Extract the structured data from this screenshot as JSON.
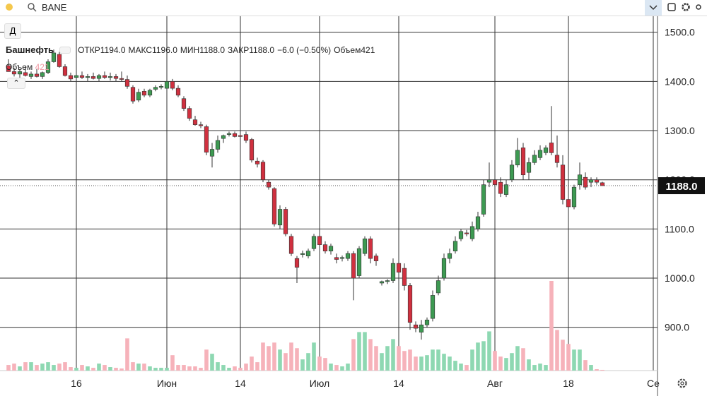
{
  "toolbar": {
    "symbol": "BANE",
    "interval": "Д"
  },
  "chart_data": {
    "type": "candlestick",
    "title": "Башнефть",
    "legend": {
      "open_label": "ОТКР",
      "open": "1194.0",
      "high_label": "МАКС",
      "high": "1196.0",
      "low_label": "МИН",
      "low": "1188.0",
      "close_label": "ЗАКР",
      "close": "1188.0",
      "change": "−6.0 (−0.50%)",
      "volume_label": "Объем",
      "volume": "421"
    },
    "up_color": "#3d9a52",
    "down_color": "#d0303f",
    "up_volume_color": "#8ed8b2",
    "down_volume_color": "#f6b2ba",
    "open": [
      1432,
      1420,
      1415,
      1418,
      1410,
      1415,
      1410,
      1418,
      1440,
      1455,
      1430,
      1412,
      1408,
      1412,
      1408,
      1410,
      1406,
      1412,
      1408,
      1410,
      1406,
      1404,
      1388,
      1362,
      1380,
      1372,
      1384,
      1388,
      1386,
      1400,
      1386,
      1365,
      1345,
      1322,
      1312,
      1308,
      1248,
      1262,
      1284,
      1292,
      1294,
      1290,
      1292,
      1282,
      1238,
      1236,
      1195,
      1182,
      1108,
      1140,
      1085,
      1040,
      1048,
      1045,
      1060,
      1085,
      1068,
      1055,
      1042,
      1040,
      1040,
      1050,
      1005,
      1050,
      1080,
      1045,
      990,
      993,
      995,
      1030,
      1020,
      985,
      905,
      890,
      905,
      918,
      970,
      1000,
      1040,
      1055,
      1080,
      1092,
      1080,
      1100,
      1130,
      1195,
      1200,
      1195,
      1170,
      1200,
      1230,
      1265,
      1215,
      1235,
      1245,
      1255,
      1275,
      1250,
      1230,
      1160,
      1145,
      1190,
      1205,
      1195,
      1200,
      1194
    ],
    "high": [
      1445,
      1428,
      1425,
      1430,
      1420,
      1425,
      1420,
      1445,
      1465,
      1460,
      1435,
      1418,
      1418,
      1420,
      1415,
      1418,
      1415,
      1420,
      1418,
      1415,
      1420,
      1412,
      1392,
      1385,
      1385,
      1385,
      1392,
      1394,
      1405,
      1405,
      1392,
      1370,
      1350,
      1330,
      1318,
      1312,
      1275,
      1290,
      1292,
      1298,
      1298,
      1295,
      1298,
      1285,
      1245,
      1240,
      1200,
      1185,
      1148,
      1145,
      1090,
      1045,
      1056,
      1060,
      1090,
      1100,
      1075,
      1070,
      1050,
      1046,
      1055,
      1055,
      1065,
      1085,
      1085,
      1050,
      995,
      998,
      1040,
      1035,
      1030,
      990,
      912,
      915,
      920,
      975,
      1005,
      1050,
      1060,
      1085,
      1100,
      1098,
      1115,
      1135,
      1200,
      1235,
      1210,
      1205,
      1200,
      1240,
      1285,
      1275,
      1245,
      1260,
      1270,
      1270,
      1350,
      1290,
      1250,
      1165,
      1190,
      1235,
      1215,
      1205,
      1205,
      1196
    ],
    "low": [
      1420,
      1410,
      1405,
      1410,
      1405,
      1408,
      1405,
      1415,
      1438,
      1428,
      1410,
      1400,
      1402,
      1405,
      1400,
      1404,
      1400,
      1405,
      1402,
      1400,
      1400,
      1385,
      1355,
      1358,
      1368,
      1368,
      1380,
      1384,
      1382,
      1382,
      1368,
      1340,
      1320,
      1310,
      1305,
      1250,
      1225,
      1255,
      1275,
      1288,
      1286,
      1284,
      1275,
      1235,
      1225,
      1195,
      1180,
      1105,
      1100,
      1085,
      1045,
      990,
      1042,
      1040,
      1055,
      1065,
      1050,
      1048,
      1030,
      1034,
      1035,
      955,
      1000,
      1045,
      1030,
      1025,
      985,
      988,
      990,
      1000,
      975,
      895,
      890,
      875,
      900,
      912,
      965,
      995,
      1030,
      1050,
      1075,
      1085,
      1075,
      1095,
      1125,
      1185,
      1185,
      1165,
      1165,
      1195,
      1225,
      1200,
      1200,
      1230,
      1240,
      1250,
      1250,
      1225,
      1150,
      1115,
      1140,
      1180,
      1180,
      1185,
      1190,
      1188
    ],
    "close": [
      1420,
      1415,
      1420,
      1412,
      1415,
      1410,
      1418,
      1440,
      1458,
      1430,
      1412,
      1405,
      1412,
      1408,
      1410,
      1406,
      1412,
      1408,
      1410,
      1406,
      1404,
      1390,
      1360,
      1378,
      1372,
      1382,
      1388,
      1390,
      1400,
      1386,
      1372,
      1345,
      1325,
      1312,
      1310,
      1256,
      1262,
      1280,
      1290,
      1294,
      1288,
      1288,
      1280,
      1240,
      1232,
      1200,
      1185,
      1110,
      1140,
      1090,
      1050,
      1022,
      1050,
      1055,
      1085,
      1068,
      1055,
      1065,
      1038,
      1042,
      1050,
      1000,
      1060,
      1080,
      1040,
      1035,
      993,
      995,
      1030,
      1012,
      985,
      910,
      898,
      905,
      915,
      965,
      995,
      1040,
      1050,
      1075,
      1095,
      1090,
      1105,
      1125,
      1190,
      1200,
      1190,
      1172,
      1190,
      1230,
      1260,
      1210,
      1235,
      1250,
      1260,
      1265,
      1255,
      1235,
      1160,
      1145,
      1185,
      1210,
      1185,
      1200,
      1195,
      1188
    ],
    "volume": [
      3200,
      4000,
      2400,
      4800,
      4800,
      3200,
      4000,
      4800,
      3200,
      4000,
      4800,
      2000,
      1600,
      3200,
      2400,
      1600,
      4000,
      3200,
      2000,
      1600,
      1200,
      18400,
      4800,
      4000,
      4000,
      2400,
      1600,
      1600,
      1600,
      8800,
      3200,
      3200,
      2400,
      2400,
      1600,
      12000,
      9600,
      4800,
      3200,
      1600,
      2400,
      1600,
      4000,
      8000,
      4800,
      16000,
      14000,
      16000,
      12000,
      10000,
      16000,
      12800,
      6400,
      10000,
      16000,
      8000,
      7200,
      4000,
      3200,
      2400,
      4000,
      18000,
      22000,
      22000,
      18000,
      14000,
      10000,
      14000,
      18000,
      14000,
      11200,
      12000,
      8000,
      8000,
      8800,
      12000,
      12000,
      9600,
      8000,
      5600,
      4000,
      3200,
      12000,
      16000,
      16800,
      22400,
      11200,
      8000,
      7200,
      10000,
      14000,
      12800,
      6400,
      3200,
      4000,
      3200,
      51200,
      23200,
      17600,
      15200,
      12000,
      12000,
      6000,
      3200,
      800,
      421
    ],
    "ylim": [
      812,
      1534
    ],
    "yticks": [
      {
        "value": 900,
        "label": "900.0"
      },
      {
        "value": 1000,
        "label": "1000.0"
      },
      {
        "value": 1100,
        "label": "1100.0"
      },
      {
        "value": 1200,
        "label": "1200.0"
      },
      {
        "value": 1300,
        "label": "1300.0"
      },
      {
        "value": 1400,
        "label": "1400.0"
      },
      {
        "value": 1500,
        "label": "1500.0"
      }
    ],
    "xlim": [
      -1.5,
      114.75
    ],
    "xticks": [
      {
        "value": 12,
        "label": "16"
      },
      {
        "value": 28,
        "label": "Июн"
      },
      {
        "value": 41,
        "label": "14"
      },
      {
        "value": 55,
        "label": "Июл"
      },
      {
        "value": 69,
        "label": "14"
      },
      {
        "value": 86,
        "label": "Авг"
      },
      {
        "value": 99,
        "label": "18"
      },
      {
        "value": 114,
        "label": "Се"
      }
    ],
    "last_price": {
      "value": 1188,
      "label": "1188.0"
    },
    "grid": true
  }
}
